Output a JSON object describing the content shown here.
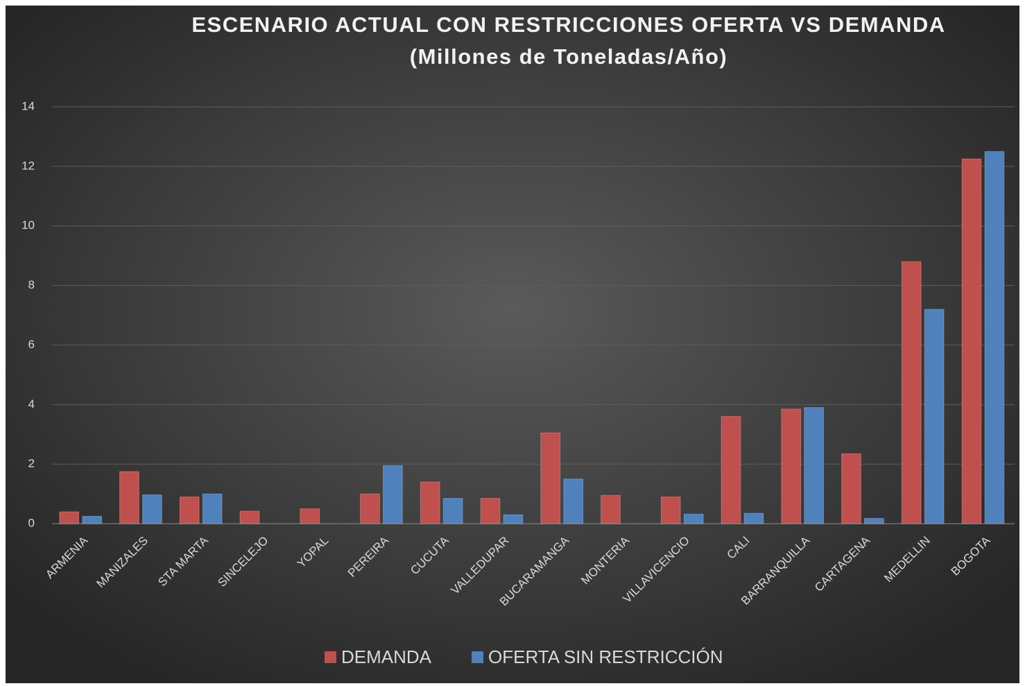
{
  "chart_data": {
    "type": "bar",
    "title": "ESCENARIO ACTUAL CON RESTRICCIONES OFERTA VS DEMANDA",
    "subtitle": "(Millones de Toneladas/Año)",
    "categories": [
      "ARMENIA",
      "MANIZALES",
      "STA MARTA",
      "SINCELEJO",
      "YOPAL",
      "PEREIRA",
      "CUCUTA",
      "VALLEDUPAR",
      "BUCARAMANGA",
      "MONTERIA",
      "VILLAVICENCIO",
      "CALI",
      "BARRANQUILLA",
      "CARTAGENA",
      "MEDELLIN",
      "BOGOTA"
    ],
    "series": [
      {
        "name": "DEMANDA",
        "color": "#c0504d",
        "values": [
          0.4,
          1.75,
          0.9,
          0.42,
          0.5,
          1.0,
          1.4,
          0.85,
          3.05,
          0.95,
          0.9,
          3.6,
          3.85,
          2.35,
          8.8,
          12.25
        ]
      },
      {
        "name": "OFERTA SIN RESTRICCIÓN",
        "color": "#4f81bd",
        "values": [
          0.25,
          0.97,
          1.0,
          0,
          0,
          1.95,
          0.85,
          0.3,
          1.5,
          0,
          0.32,
          0.35,
          3.9,
          0.18,
          7.2,
          12.5
        ]
      }
    ],
    "ylim": [
      0,
      14
    ],
    "yticks": [
      0,
      2,
      4,
      6,
      8,
      10,
      12,
      14
    ],
    "grid": true,
    "legend": "bottom"
  }
}
